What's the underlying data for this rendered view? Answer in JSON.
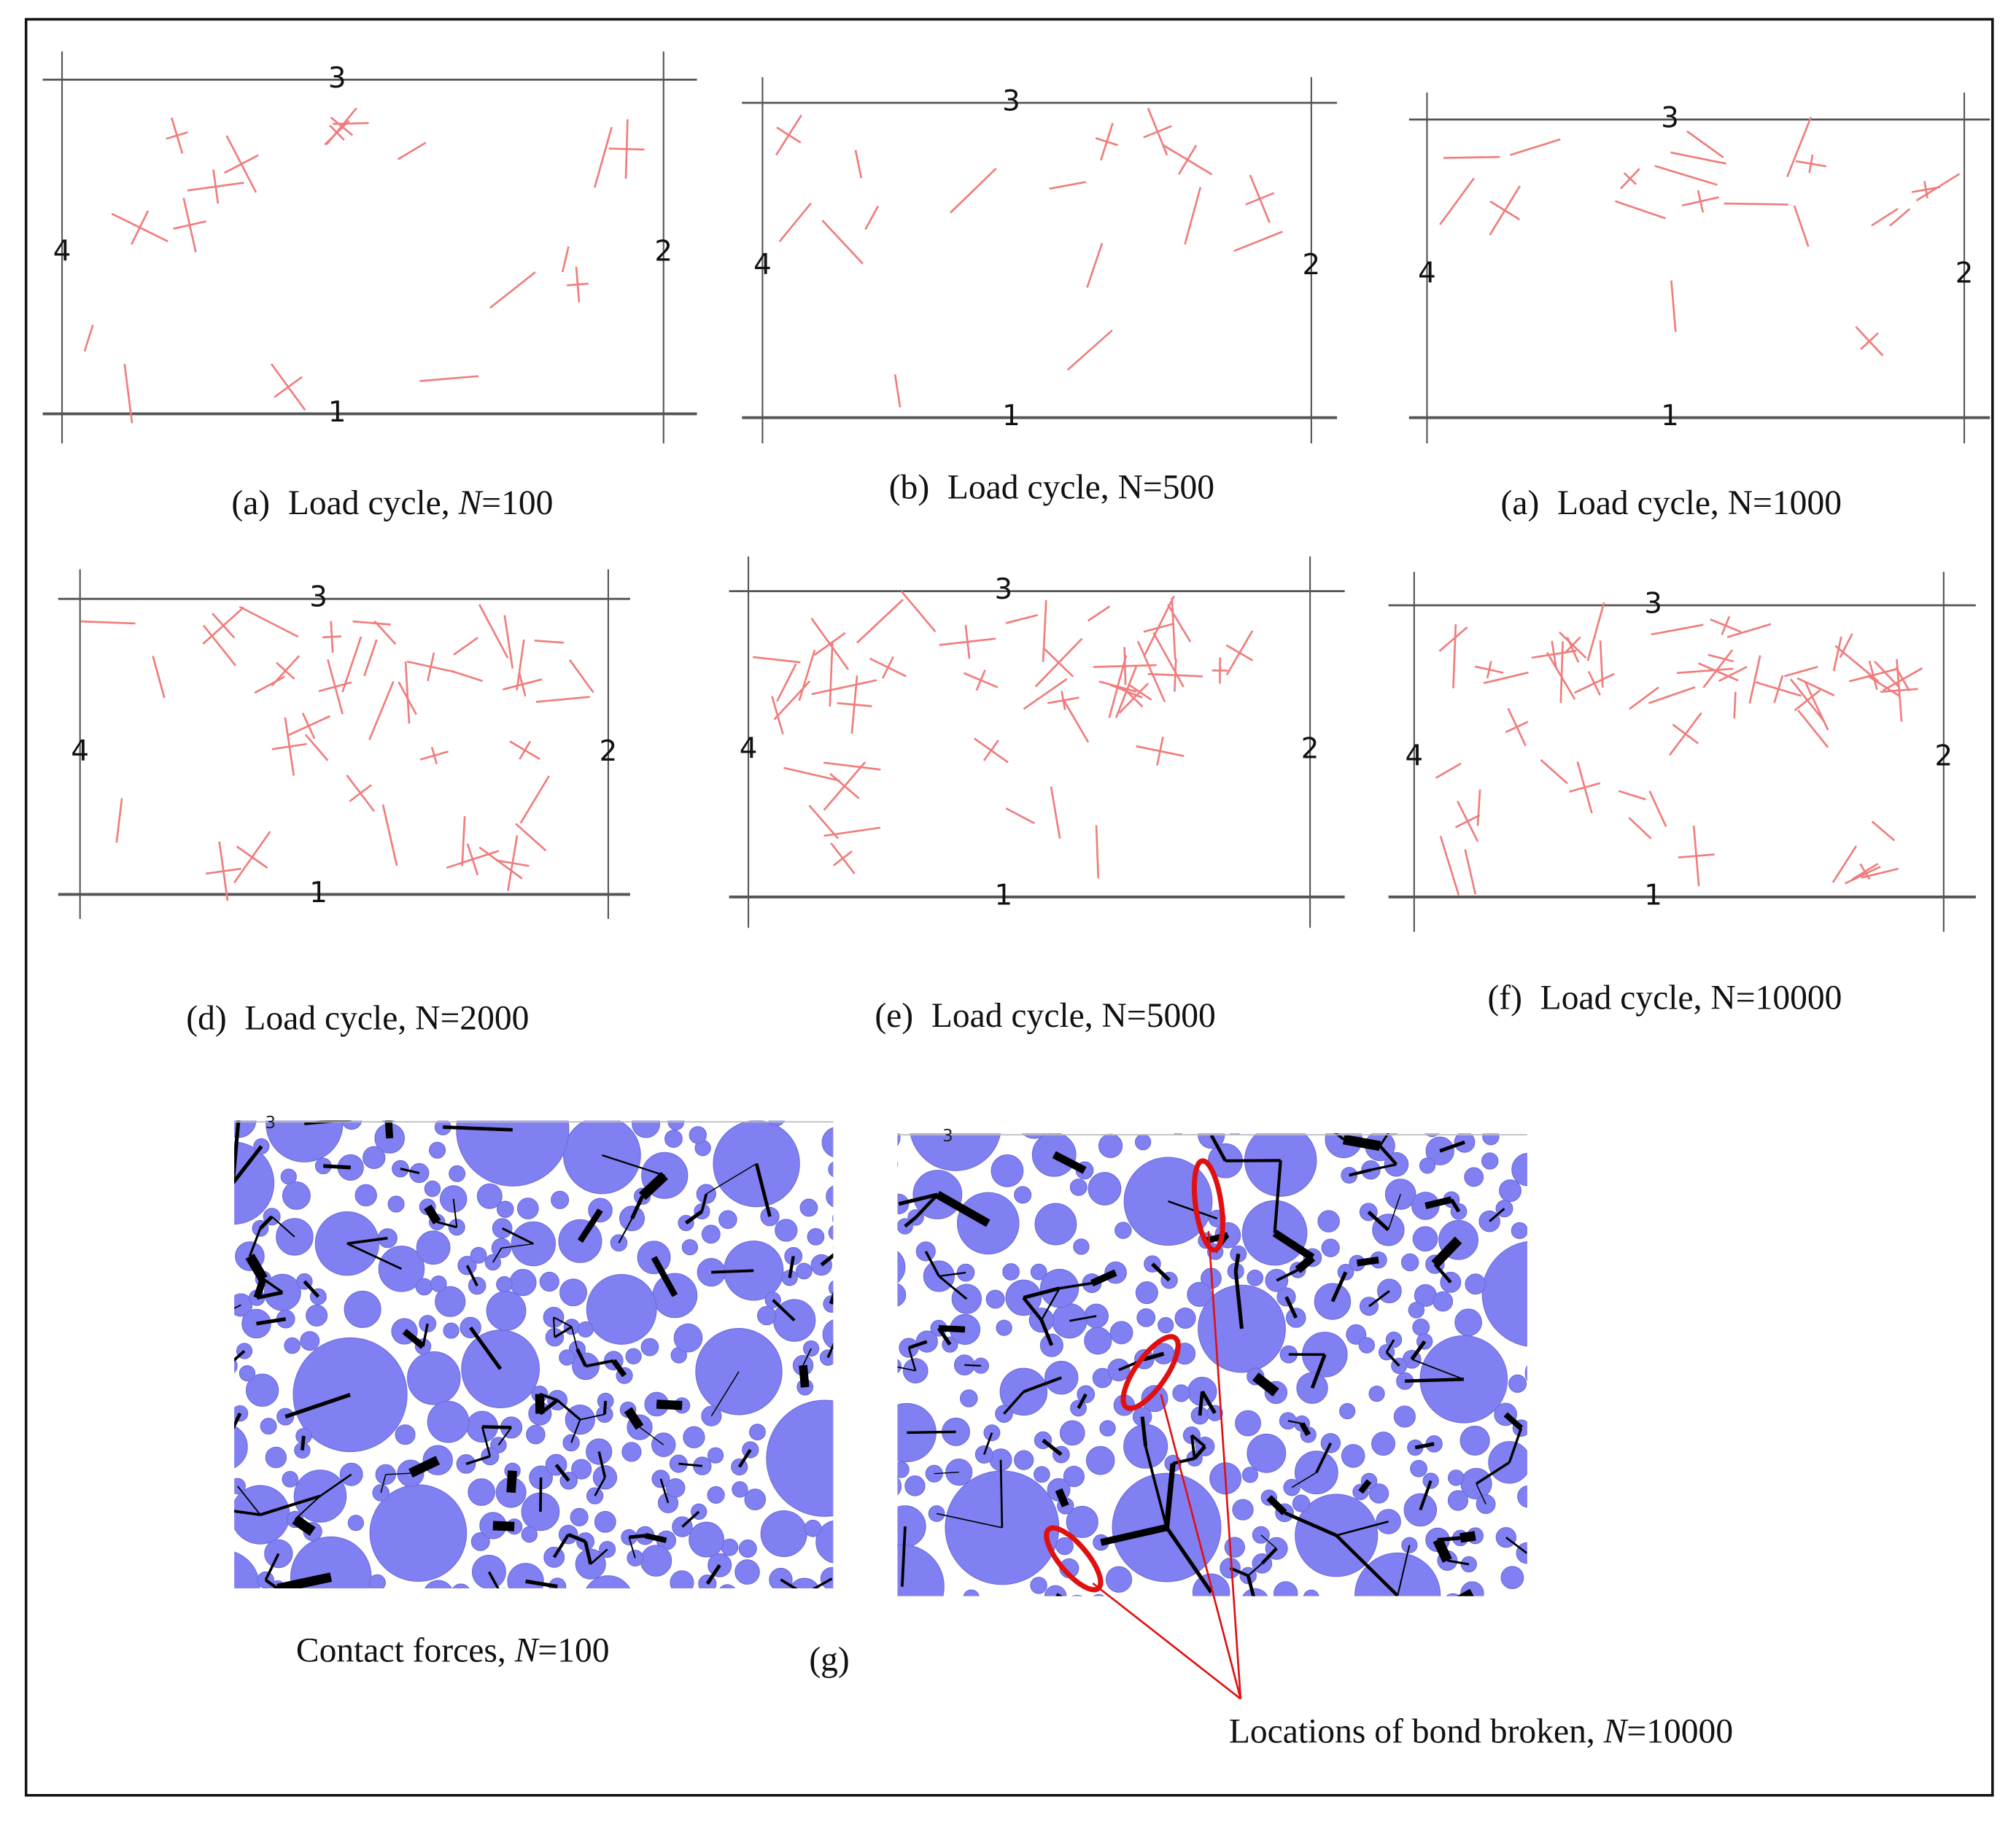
{
  "panels": [
    {
      "caption": {
        "label": "(a)",
        "text": "Load cycle, ",
        "var": "N",
        "rest": "=100"
      },
      "walls": {
        "top": "3",
        "right": "2",
        "bottom": "1",
        "left": "4"
      }
    },
    {
      "caption": {
        "label": "(b)",
        "text": "Load cycle, N=500"
      },
      "walls": {
        "top": "3",
        "right": "2",
        "bottom": "1",
        "left": "4"
      }
    },
    {
      "caption": {
        "label": "(a)",
        "text": "Load cycle, N=1000"
      },
      "walls": {
        "top": "3",
        "right": "2",
        "bottom": "1",
        "left": "4"
      }
    },
    {
      "caption": {
        "label": "(d)",
        "text": "Load cycle, N=2000"
      },
      "walls": {
        "top": "3",
        "right": "2",
        "bottom": "1",
        "left": "4"
      }
    },
    {
      "caption": {
        "label": "(e)",
        "text": "Load cycle, N=5000"
      },
      "walls": {
        "top": "3",
        "right": "2",
        "bottom": "1",
        "left": "4"
      }
    },
    {
      "caption": {
        "label": "(f)",
        "text": "Load cycle, N=10000"
      },
      "walls": {
        "top": "3",
        "right": "2",
        "bottom": "1",
        "left": "4"
      }
    }
  ],
  "figure_g": {
    "left_caption": {
      "text": "Contact forces, ",
      "var": "N",
      "rest": "=100"
    },
    "label": "(g)",
    "right_caption": {
      "text": "Locations of bond broken, ",
      "var": "N",
      "rest": "=10000"
    },
    "left_wall_label": "3",
    "right_wall_label": "3"
  }
}
